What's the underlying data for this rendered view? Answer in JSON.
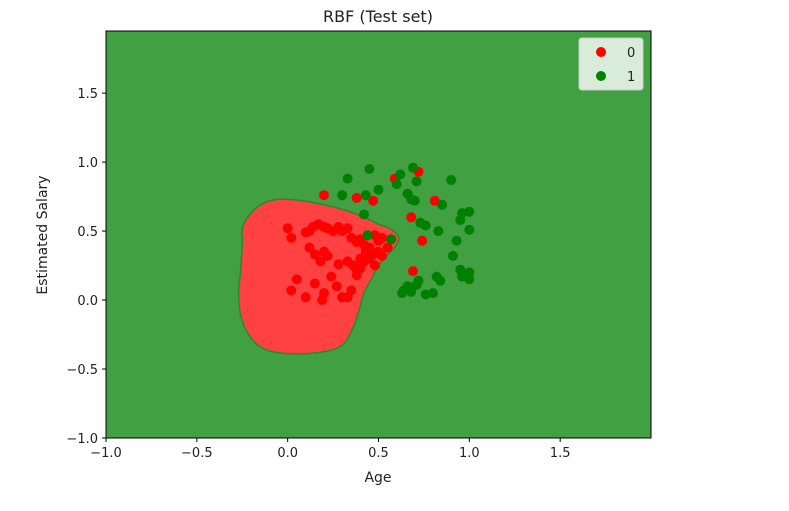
{
  "chart_data": {
    "type": "scatter",
    "title": "RBF (Test set)",
    "xlabel": "Age",
    "ylabel": "Estimated Salary",
    "xlim": [
      -1.0,
      2.0
    ],
    "ylim": [
      -1.0,
      1.95
    ],
    "xticks": [
      -1.0,
      -0.5,
      0.0,
      0.5,
      1.0,
      1.5
    ],
    "xtick_labels": [
      "−1.0",
      "−0.5",
      "0.0",
      "0.5",
      "1.0",
      "1.5"
    ],
    "yticks": [
      -1.0,
      -0.5,
      0.0,
      0.5,
      1.0,
      1.5
    ],
    "ytick_labels": [
      "−1.0",
      "−0.5",
      "0.0",
      "0.5",
      "1.0",
      "1.5"
    ],
    "grid": false,
    "legend_position": "top-right",
    "background_region": {
      "class": "1",
      "color": "#41a041"
    },
    "decision_region": {
      "class": "0",
      "color": "#ff4141",
      "boundary_color": "#2a8a2a",
      "outline": [
        [
          -0.22,
          0.6
        ],
        [
          -0.15,
          0.69
        ],
        [
          -0.05,
          0.73
        ],
        [
          0.08,
          0.72
        ],
        [
          0.2,
          0.69
        ],
        [
          0.32,
          0.65
        ],
        [
          0.42,
          0.6
        ],
        [
          0.5,
          0.55
        ],
        [
          0.56,
          0.52
        ],
        [
          0.61,
          0.46
        ],
        [
          0.6,
          0.4
        ],
        [
          0.55,
          0.33
        ],
        [
          0.5,
          0.25
        ],
        [
          0.46,
          0.15
        ],
        [
          0.42,
          0.05
        ],
        [
          0.38,
          -0.13
        ],
        [
          0.33,
          -0.28
        ],
        [
          0.27,
          -0.35
        ],
        [
          0.17,
          -0.38
        ],
        [
          0.05,
          -0.39
        ],
        [
          -0.06,
          -0.38
        ],
        [
          -0.15,
          -0.34
        ],
        [
          -0.22,
          -0.24
        ],
        [
          -0.26,
          -0.1
        ],
        [
          -0.27,
          0.05
        ],
        [
          -0.26,
          0.2
        ],
        [
          -0.25,
          0.4
        ],
        [
          -0.25,
          0.52
        ]
      ]
    },
    "series": [
      {
        "name": "0",
        "color": "#ff0000",
        "points": [
          [
            0.2,
            0.76
          ],
          [
            0.38,
            0.74
          ],
          [
            0.47,
            0.72
          ],
          [
            0.59,
            0.88
          ],
          [
            0.72,
            0.93
          ],
          [
            0.68,
            0.6
          ],
          [
            0.81,
            0.72
          ],
          [
            0.74,
            0.43
          ],
          [
            0.69,
            0.21
          ],
          [
            0.0,
            0.52
          ],
          [
            0.02,
            0.45
          ],
          [
            0.1,
            0.49
          ],
          [
            0.12,
            0.5
          ],
          [
            0.14,
            0.53
          ],
          [
            0.17,
            0.55
          ],
          [
            0.2,
            0.53
          ],
          [
            0.22,
            0.52
          ],
          [
            0.25,
            0.5
          ],
          [
            0.28,
            0.53
          ],
          [
            0.3,
            0.5
          ],
          [
            0.33,
            0.52
          ],
          [
            0.35,
            0.45
          ],
          [
            0.38,
            0.42
          ],
          [
            0.4,
            0.44
          ],
          [
            0.42,
            0.4
          ],
          [
            0.45,
            0.38
          ],
          [
            0.48,
            0.47
          ],
          [
            0.5,
            0.43
          ],
          [
            0.52,
            0.45
          ],
          [
            0.12,
            0.38
          ],
          [
            0.15,
            0.33
          ],
          [
            0.18,
            0.28
          ],
          [
            0.2,
            0.35
          ],
          [
            0.22,
            0.32
          ],
          [
            0.28,
            0.26
          ],
          [
            0.33,
            0.28
          ],
          [
            0.36,
            0.25
          ],
          [
            0.38,
            0.22
          ],
          [
            0.4,
            0.23
          ],
          [
            0.42,
            0.28
          ],
          [
            0.45,
            0.3
          ],
          [
            0.47,
            0.33
          ],
          [
            0.5,
            0.35
          ],
          [
            0.52,
            0.32
          ],
          [
            0.55,
            0.38
          ],
          [
            0.4,
            0.3
          ],
          [
            0.43,
            0.35
          ],
          [
            0.48,
            0.25
          ],
          [
            0.02,
            0.07
          ],
          [
            0.05,
            0.15
          ],
          [
            0.1,
            0.02
          ],
          [
            0.15,
            0.12
          ],
          [
            0.19,
            0.0
          ],
          [
            0.2,
            0.05
          ],
          [
            0.24,
            0.17
          ],
          [
            0.27,
            0.1
          ],
          [
            0.3,
            0.02
          ],
          [
            0.33,
            0.02
          ],
          [
            0.35,
            0.07
          ],
          [
            0.38,
            0.18
          ]
        ]
      },
      {
        "name": "1",
        "color": "#008000",
        "points": [
          [
            0.33,
            0.88
          ],
          [
            0.45,
            0.95
          ],
          [
            0.5,
            0.8
          ],
          [
            0.43,
            0.76
          ],
          [
            0.42,
            0.62
          ],
          [
            0.3,
            0.76
          ],
          [
            0.44,
            0.47
          ],
          [
            0.57,
            0.44
          ],
          [
            0.6,
            0.84
          ],
          [
            0.62,
            0.91
          ],
          [
            0.66,
            0.77
          ],
          [
            0.69,
            0.96
          ],
          [
            0.71,
            0.86
          ],
          [
            0.68,
            0.73
          ],
          [
            0.7,
            0.72
          ],
          [
            0.73,
            0.56
          ],
          [
            0.76,
            0.54
          ],
          [
            0.83,
            0.5
          ],
          [
            0.85,
            0.69
          ],
          [
            0.9,
            0.87
          ],
          [
            0.93,
            0.43
          ],
          [
            0.91,
            0.32
          ],
          [
            0.95,
            0.58
          ],
          [
            0.96,
            0.63
          ],
          [
            1.0,
            0.64
          ],
          [
            1.0,
            0.51
          ],
          [
            0.95,
            0.22
          ],
          [
            0.96,
            0.17
          ],
          [
            1.0,
            0.2
          ],
          [
            1.0,
            0.15
          ],
          [
            0.82,
            0.17
          ],
          [
            0.84,
            0.14
          ],
          [
            0.71,
            0.11
          ],
          [
            0.72,
            0.14
          ],
          [
            0.64,
            0.07
          ],
          [
            0.66,
            0.1
          ],
          [
            0.68,
            0.06
          ],
          [
            0.63,
            0.05
          ],
          [
            0.76,
            0.04
          ],
          [
            0.8,
            0.05
          ]
        ]
      }
    ],
    "legend": [
      {
        "label": "0",
        "color": "#ff0000"
      },
      {
        "label": "1",
        "color": "#008000"
      }
    ]
  }
}
